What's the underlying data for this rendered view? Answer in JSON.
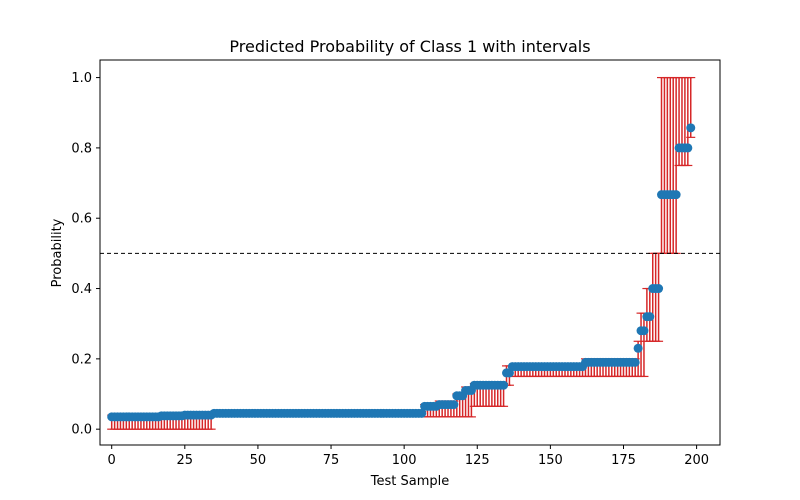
{
  "chart_data": {
    "type": "scatter",
    "title": "Predicted Probability of Class 1 with intervals",
    "xlabel": "Test Sample",
    "ylabel": "Probability",
    "xlim": [
      -4,
      208
    ],
    "ylim": [
      -0.045,
      1.05
    ],
    "xticks": [
      0,
      25,
      50,
      75,
      100,
      125,
      150,
      175,
      200
    ],
    "yticks": [
      0.0,
      0.2,
      0.4,
      0.6,
      0.8,
      1.0
    ],
    "xtick_labels": [
      "0",
      "25",
      "50",
      "75",
      "100",
      "125",
      "150",
      "175",
      "200"
    ],
    "ytick_labels": [
      "0.0",
      "0.2",
      "0.4",
      "0.6",
      "0.8",
      "1.0"
    ],
    "threshold": 0.5,
    "grid": false,
    "colors": {
      "points": "#1f77b4",
      "errorbars": "#d62728",
      "threshold": "#000000"
    },
    "segments": [
      {
        "start": 0,
        "end": 16,
        "y": 0.035,
        "lo": 0.0,
        "hi": 0.04
      },
      {
        "start": 17,
        "end": 24,
        "y": 0.038,
        "lo": 0.0,
        "hi": 0.045
      },
      {
        "start": 25,
        "end": 34,
        "y": 0.04,
        "lo": 0.0,
        "hi": 0.048
      },
      {
        "start": 35,
        "end": 106,
        "y": 0.045,
        "lo": 0.035,
        "hi": 0.05
      },
      {
        "start": 107,
        "end": 111,
        "y": 0.065,
        "lo": 0.035,
        "hi": 0.07
      },
      {
        "start": 112,
        "end": 117,
        "y": 0.07,
        "lo": 0.035,
        "hi": 0.08
      },
      {
        "start": 118,
        "end": 120,
        "y": 0.095,
        "lo": 0.035,
        "hi": 0.1
      },
      {
        "start": 121,
        "end": 123,
        "y": 0.11,
        "lo": 0.035,
        "hi": 0.12
      },
      {
        "start": 124,
        "end": 134,
        "y": 0.125,
        "lo": 0.065,
        "hi": 0.13
      },
      {
        "start": 135,
        "end": 136,
        "y": 0.16,
        "lo": 0.125,
        "hi": 0.18
      },
      {
        "start": 137,
        "end": 161,
        "y": 0.178,
        "lo": 0.15,
        "hi": 0.18
      },
      {
        "start": 162,
        "end": 179,
        "y": 0.19,
        "lo": 0.15,
        "hi": 0.2
      },
      {
        "start": 180,
        "end": 180,
        "y": 0.23,
        "lo": 0.15,
        "hi": 0.25
      },
      {
        "start": 181,
        "end": 182,
        "y": 0.28,
        "lo": 0.15,
        "hi": 0.33
      },
      {
        "start": 183,
        "end": 184,
        "y": 0.32,
        "lo": 0.25,
        "hi": 0.4
      },
      {
        "start": 185,
        "end": 187,
        "y": 0.4,
        "lo": 0.25,
        "hi": 0.5
      },
      {
        "start": 188,
        "end": 193,
        "y": 0.667,
        "lo": 0.5,
        "hi": 1.0
      },
      {
        "start": 194,
        "end": 197,
        "y": 0.8,
        "lo": 0.75,
        "hi": 1.0
      },
      {
        "start": 198,
        "end": 198,
        "y": 0.857,
        "lo": 0.83,
        "hi": 1.0
      }
    ]
  }
}
